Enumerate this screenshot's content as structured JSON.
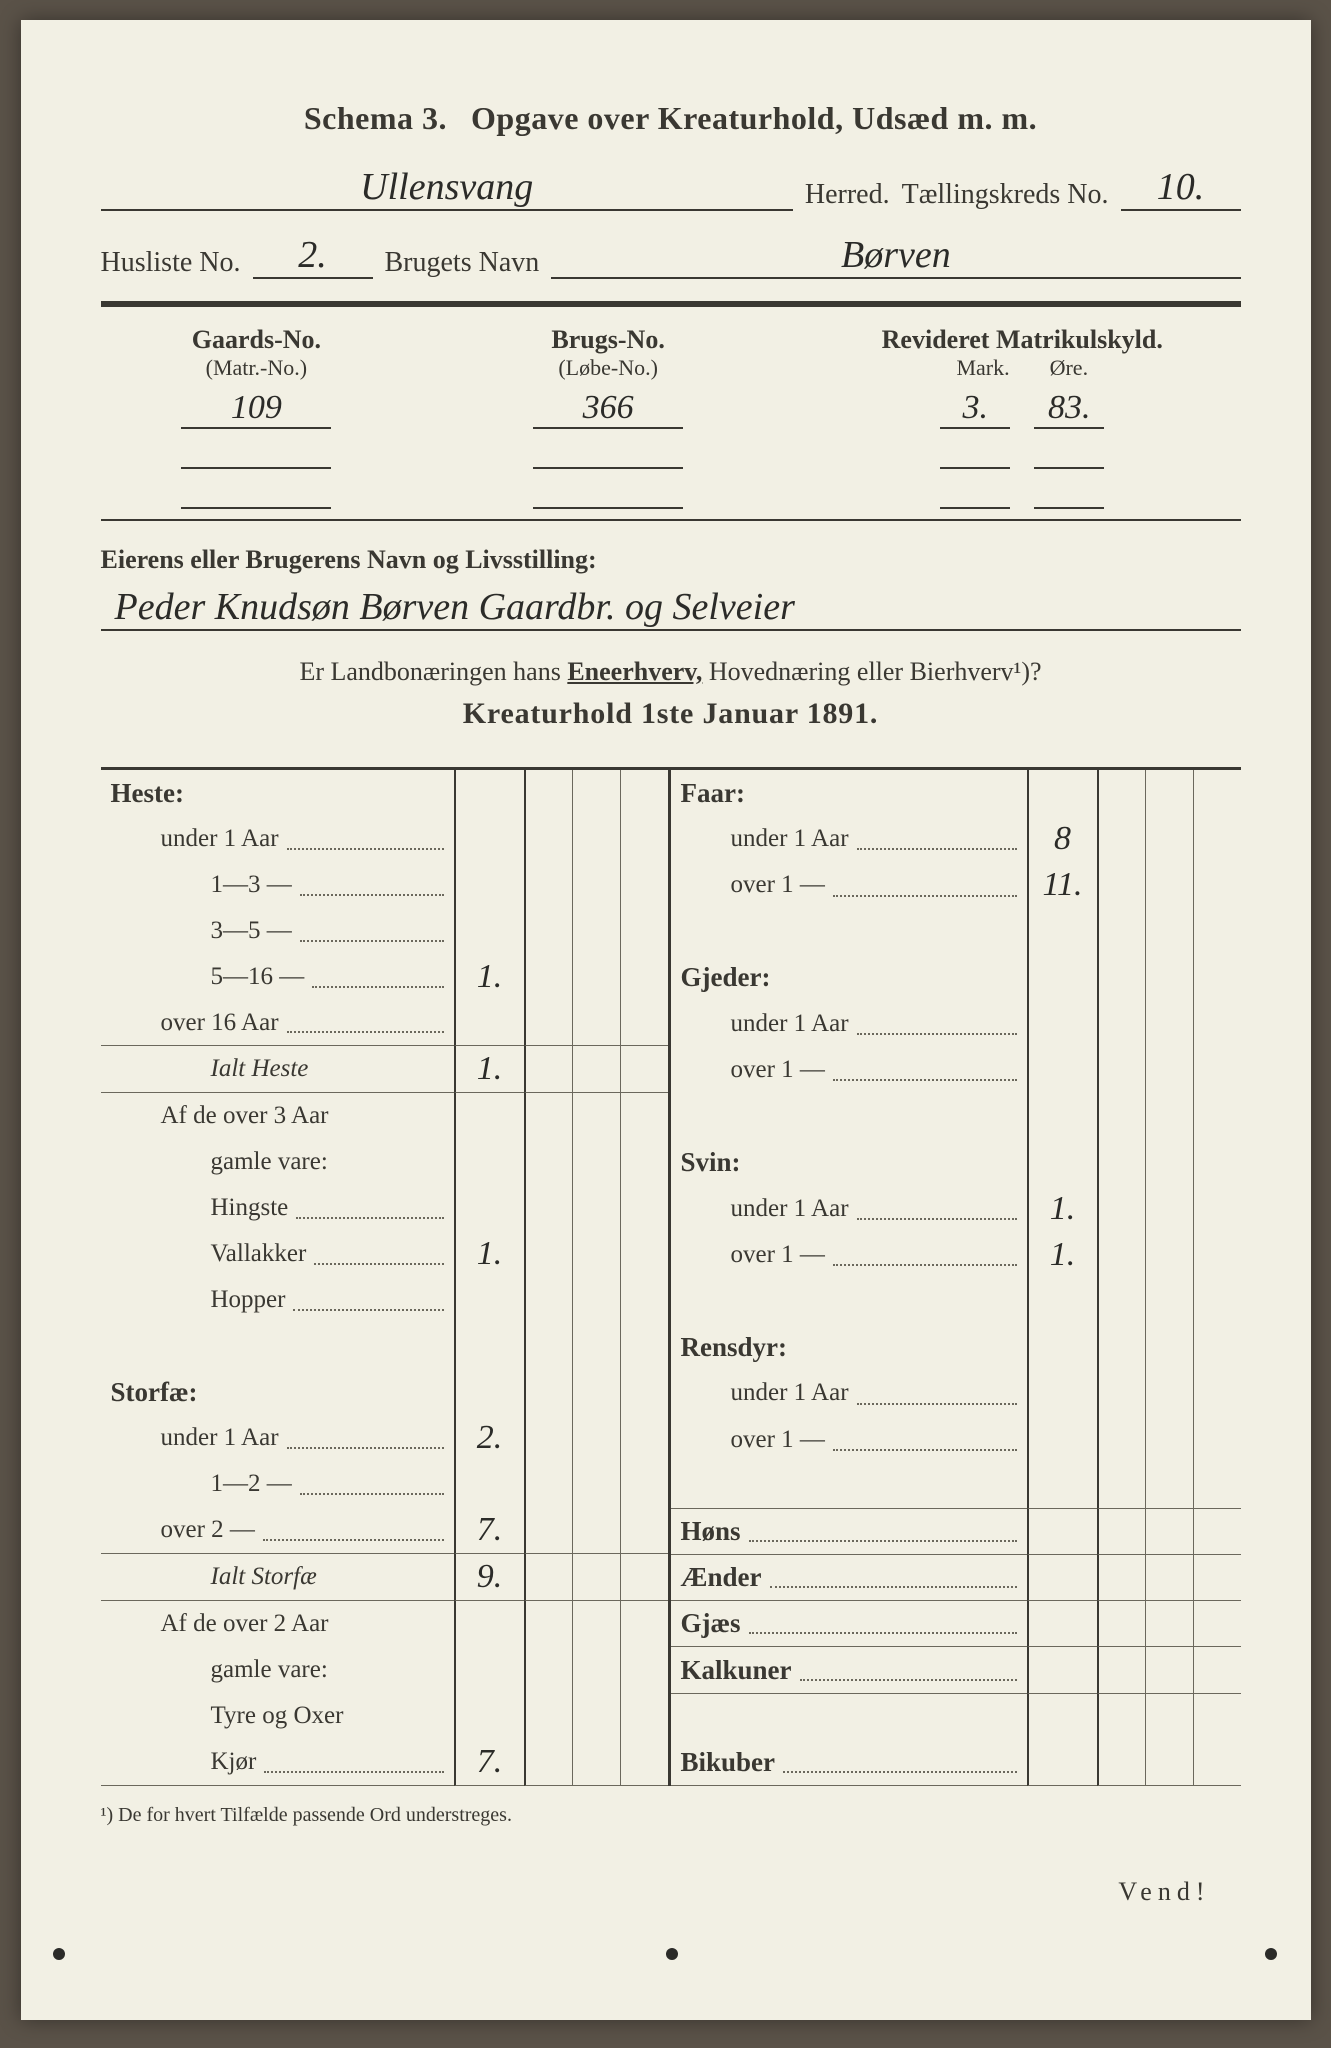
{
  "colors": {
    "paper": "#f2f0e4",
    "ink": "#3a3832",
    "handwriting": "#2b2b28",
    "dot": "#6b685c",
    "background": "#5a5248"
  },
  "typography": {
    "print_family": "Times New Roman, Georgia, serif",
    "handwriting_family": "Brush Script MT, Segoe Script, cursive",
    "title_size_pt": 24,
    "body_size_pt": 19,
    "footnote_size_pt": 15
  },
  "header": {
    "schema_label": "Schema 3.",
    "title": "Opgave over Kreaturhold, Udsæd m. m.",
    "herred_value": "Ullensvang",
    "herred_label": "Herred.",
    "kreds_label": "Tællingskreds No.",
    "kreds_value": "10.",
    "husliste_label": "Husliste No.",
    "husliste_value": "2.",
    "brugets_label": "Brugets Navn",
    "brugets_value": "Børven"
  },
  "matrikul": {
    "gaards_h1": "Gaards-No.",
    "gaards_h2": "(Matr.-No.)",
    "gaards_value": "109",
    "brugs_h1": "Brugs-No.",
    "brugs_h2": "(Løbe-No.)",
    "brugs_value": "366",
    "rev_h1": "Revideret Matrikulskyld.",
    "rev_mark_label": "Mark.",
    "rev_ore_label": "Øre.",
    "rev_mark_value": "3.",
    "rev_ore_value": "83."
  },
  "owner": {
    "label": "Eierens eller Brugerens Navn og Livsstilling:",
    "value": "Peder Knudsøn Børven Gaardbr. og Selveier"
  },
  "question": {
    "prefix": "Er Landbonæringen hans ",
    "underlined": "Eneerhverv,",
    "suffix": " Hovednæring eller Bierhverv¹)?"
  },
  "subtitle": "Kreaturhold 1ste Januar 1891.",
  "left_rows": [
    {
      "label": "Heste:",
      "cls": "grp",
      "val": "",
      "line": false
    },
    {
      "label": "under 1 Aar",
      "cls": "indent dots",
      "val": "",
      "line": false
    },
    {
      "label": "1—3   —",
      "cls": "indent2 dots",
      "val": "",
      "line": false
    },
    {
      "label": "3—5   —",
      "cls": "indent2 dots",
      "val": "",
      "line": false
    },
    {
      "label": "5—16  —",
      "cls": "indent2 dots",
      "val": "1.",
      "line": false
    },
    {
      "label": "over 16 Aar",
      "cls": "indent dots",
      "val": "",
      "line": true
    },
    {
      "label": "Ialt Heste",
      "cls": "indent2 ital",
      "val": "1.",
      "line": true
    },
    {
      "label": "Af de over 3 Aar",
      "cls": "indent",
      "val": "",
      "line": false
    },
    {
      "label": "gamle vare:",
      "cls": "indent2",
      "val": "",
      "line": false
    },
    {
      "label": "Hingste",
      "cls": "indent2 dots",
      "val": "",
      "line": false
    },
    {
      "label": "Vallakker",
      "cls": "indent2 dots",
      "val": "1.",
      "line": false
    },
    {
      "label": "Hopper",
      "cls": "indent2 dots",
      "val": "",
      "line": false
    },
    {
      "label": "",
      "cls": "",
      "val": "",
      "line": false
    },
    {
      "label": "Storfæ:",
      "cls": "grp",
      "val": "",
      "line": false
    },
    {
      "label": "under 1 Aar",
      "cls": "indent dots",
      "val": "2.",
      "line": false
    },
    {
      "label": "1—2   —",
      "cls": "indent2 dots",
      "val": "",
      "line": false
    },
    {
      "label": "over 2   —",
      "cls": "indent dots",
      "val": "7.",
      "line": true
    },
    {
      "label": "Ialt Storfæ",
      "cls": "indent2 ital",
      "val": "9.",
      "line": true
    },
    {
      "label": "Af de over 2 Aar",
      "cls": "indent",
      "val": "",
      "line": false
    },
    {
      "label": "gamle vare:",
      "cls": "indent2",
      "val": "",
      "line": false
    },
    {
      "label": "Tyre og Oxer",
      "cls": "indent2",
      "val": "",
      "line": false
    },
    {
      "label": "Kjør",
      "cls": "indent2 dots",
      "val": "7.",
      "line": true
    }
  ],
  "right_rows": [
    {
      "label": "Faar:",
      "cls": "grp",
      "val": "",
      "line": false
    },
    {
      "label": "under 1 Aar",
      "cls": "indent dots",
      "val": "8",
      "line": false
    },
    {
      "label": "over 1   —",
      "cls": "indent dots",
      "val": "11.",
      "line": false
    },
    {
      "label": "",
      "cls": "",
      "val": "",
      "line": false
    },
    {
      "label": "Gjeder:",
      "cls": "grp",
      "val": "",
      "line": false
    },
    {
      "label": "under 1 Aar",
      "cls": "indent dots",
      "val": "",
      "line": false
    },
    {
      "label": "over 1   —",
      "cls": "indent dots",
      "val": "",
      "line": false
    },
    {
      "label": "",
      "cls": "",
      "val": "",
      "line": false
    },
    {
      "label": "Svin:",
      "cls": "grp",
      "val": "",
      "line": false
    },
    {
      "label": "under 1 Aar",
      "cls": "indent dots",
      "val": "1.",
      "line": false
    },
    {
      "label": "over 1   —",
      "cls": "indent dots",
      "val": "1.",
      "line": false
    },
    {
      "label": "",
      "cls": "",
      "val": "",
      "line": false
    },
    {
      "label": "Rensdyr:",
      "cls": "grp",
      "val": "",
      "line": false
    },
    {
      "label": "under 1 Aar",
      "cls": "indent dots",
      "val": "",
      "line": false
    },
    {
      "label": "over 1   —",
      "cls": "indent dots",
      "val": "",
      "line": false
    },
    {
      "label": "",
      "cls": "",
      "val": "",
      "line": true
    },
    {
      "label": "Høns",
      "cls": "grp dots",
      "val": "",
      "line": true
    },
    {
      "label": "Ænder",
      "cls": "grp dots",
      "val": "",
      "line": true
    },
    {
      "label": "Gjæs",
      "cls": "grp dots",
      "val": "",
      "line": true
    },
    {
      "label": "Kalkuner",
      "cls": "grp dots",
      "val": "",
      "line": true
    },
    {
      "label": "",
      "cls": "",
      "val": "",
      "line": false
    },
    {
      "label": "Bikuber",
      "cls": "grp dots",
      "val": "",
      "line": true
    }
  ],
  "footnote": "¹) De for hvert Tilfælde passende Ord understreges.",
  "vend": "Vend!"
}
